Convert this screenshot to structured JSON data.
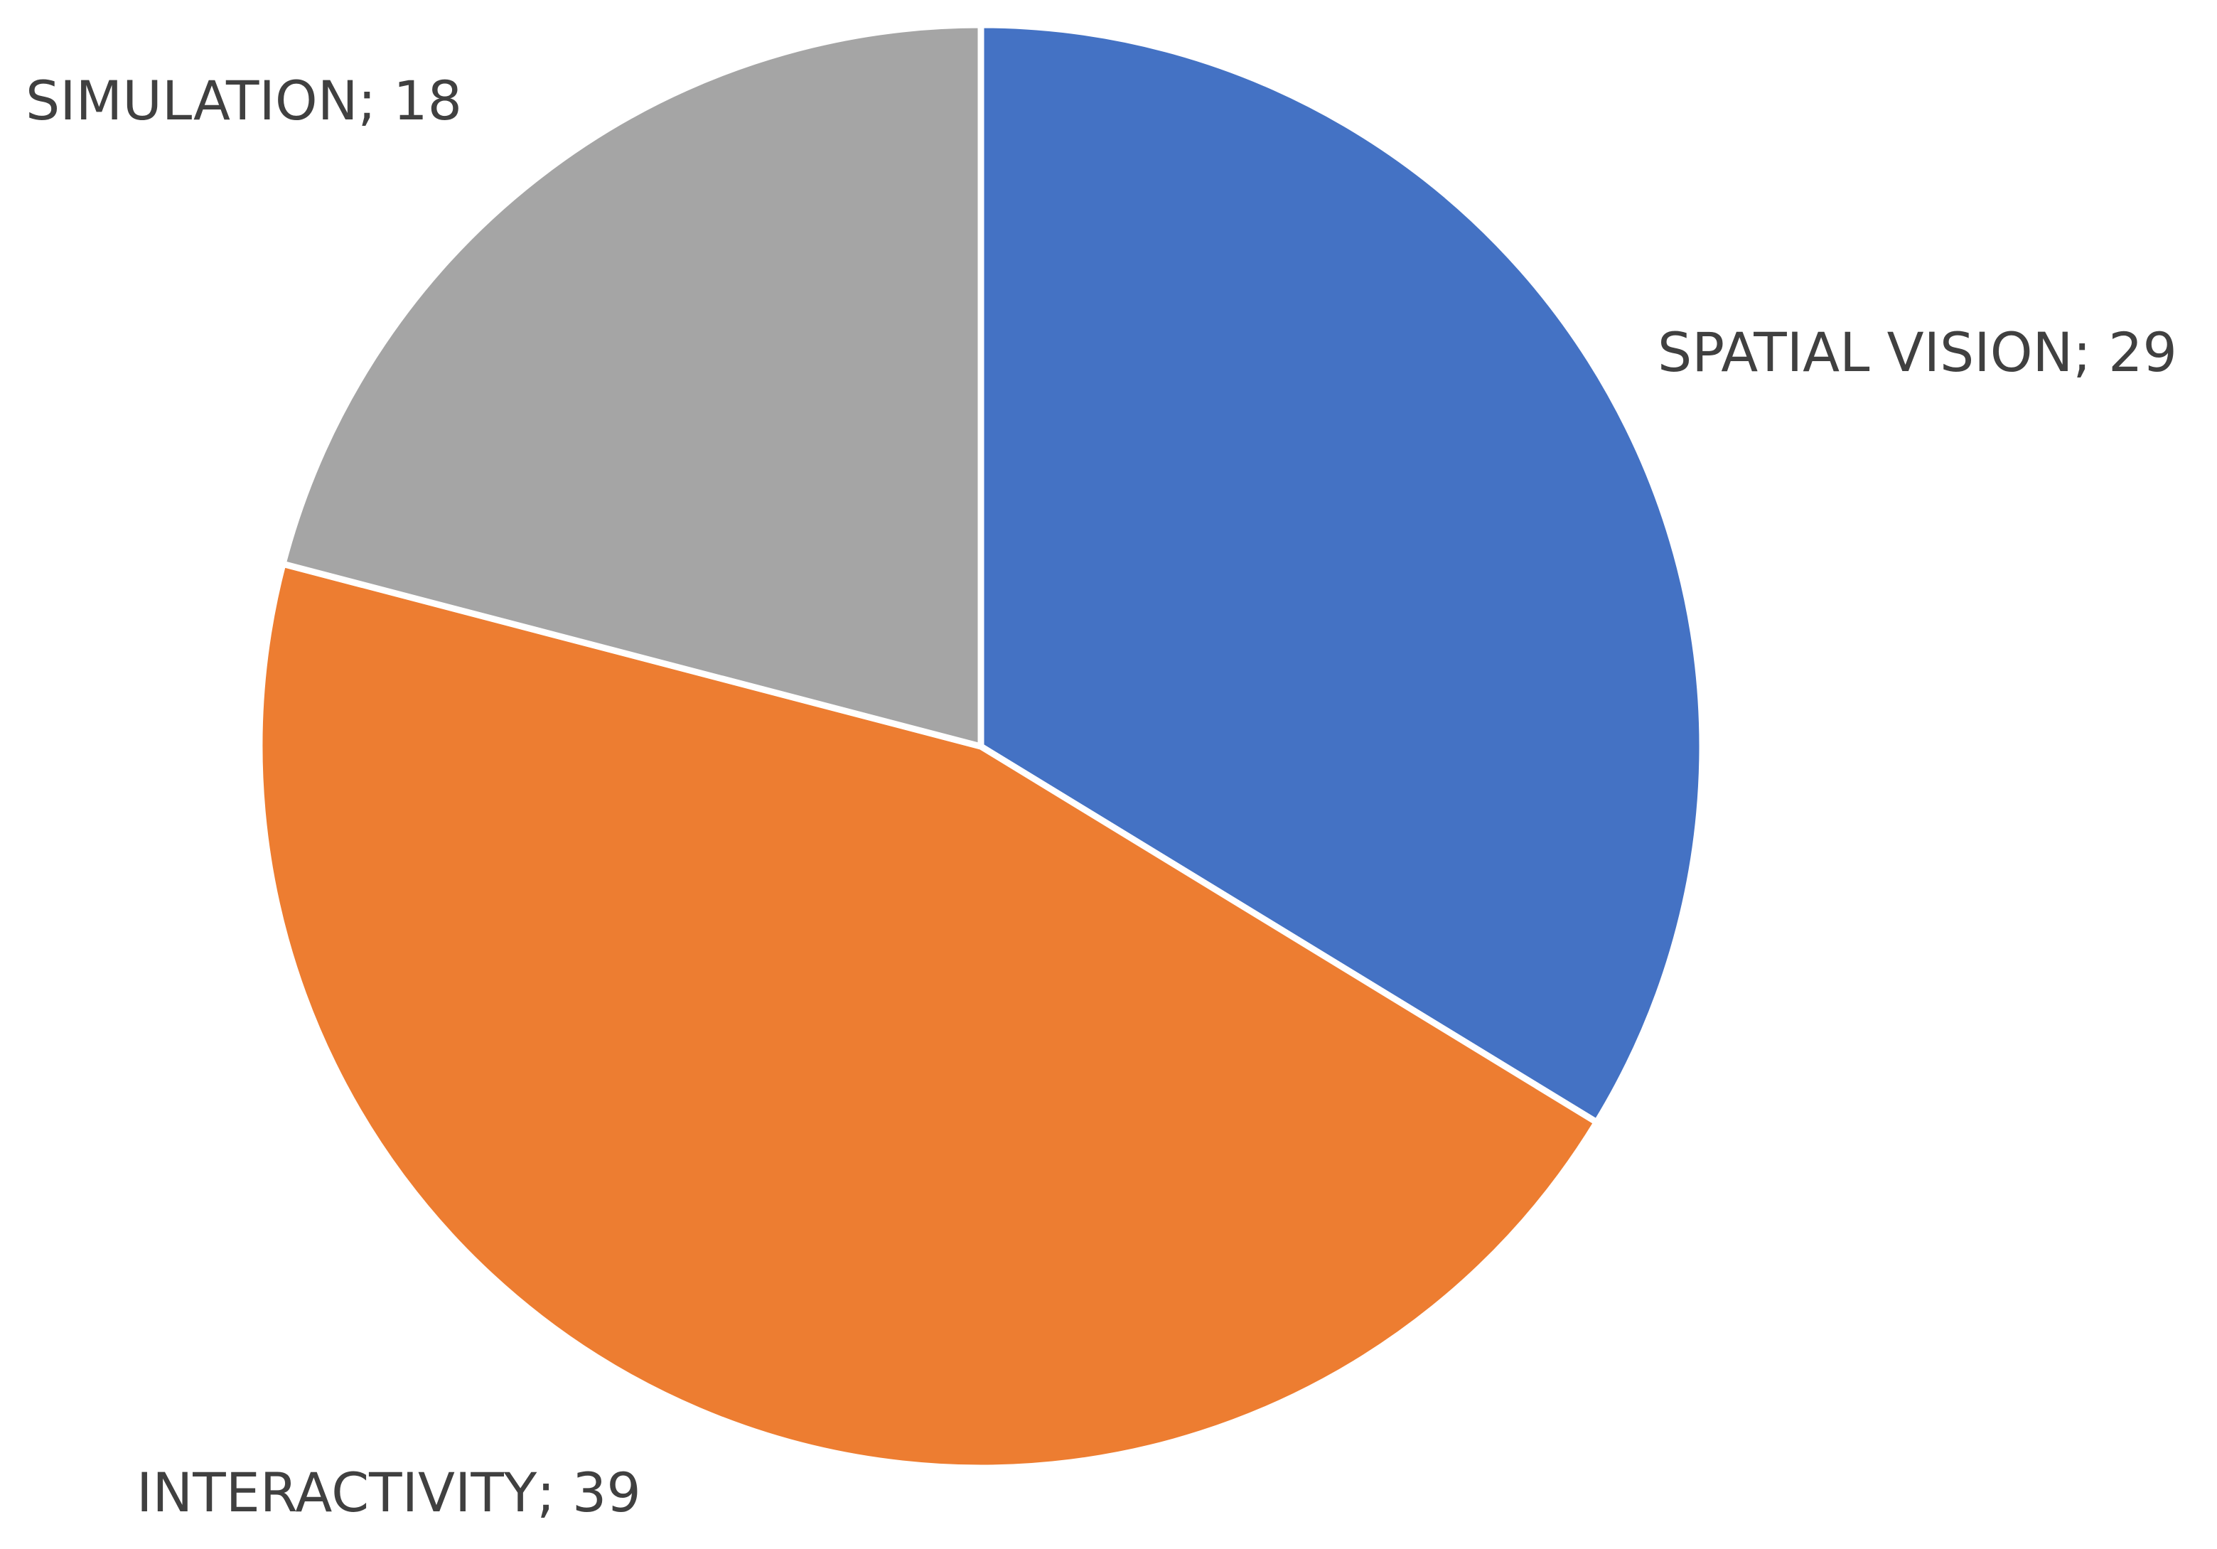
{
  "chart_data": {
    "type": "pie",
    "title": "",
    "slices": [
      {
        "label": "SPATIAL VISION",
        "value": 29,
        "color": "#4472C4",
        "label_text": "SPATIAL VISION; 29"
      },
      {
        "label": "INTERACTIVITY",
        "value": 39,
        "color": "#ED7D31",
        "label_text": "INTERACTIVITY; 39"
      },
      {
        "label": "SIMULATION",
        "value": 18,
        "color": "#A5A5A5",
        "label_text": "SIMULATION; 18"
      }
    ],
    "start_angle_deg": 0,
    "direction": "clockwise",
    "legend": "none",
    "data_labels": "outside"
  }
}
